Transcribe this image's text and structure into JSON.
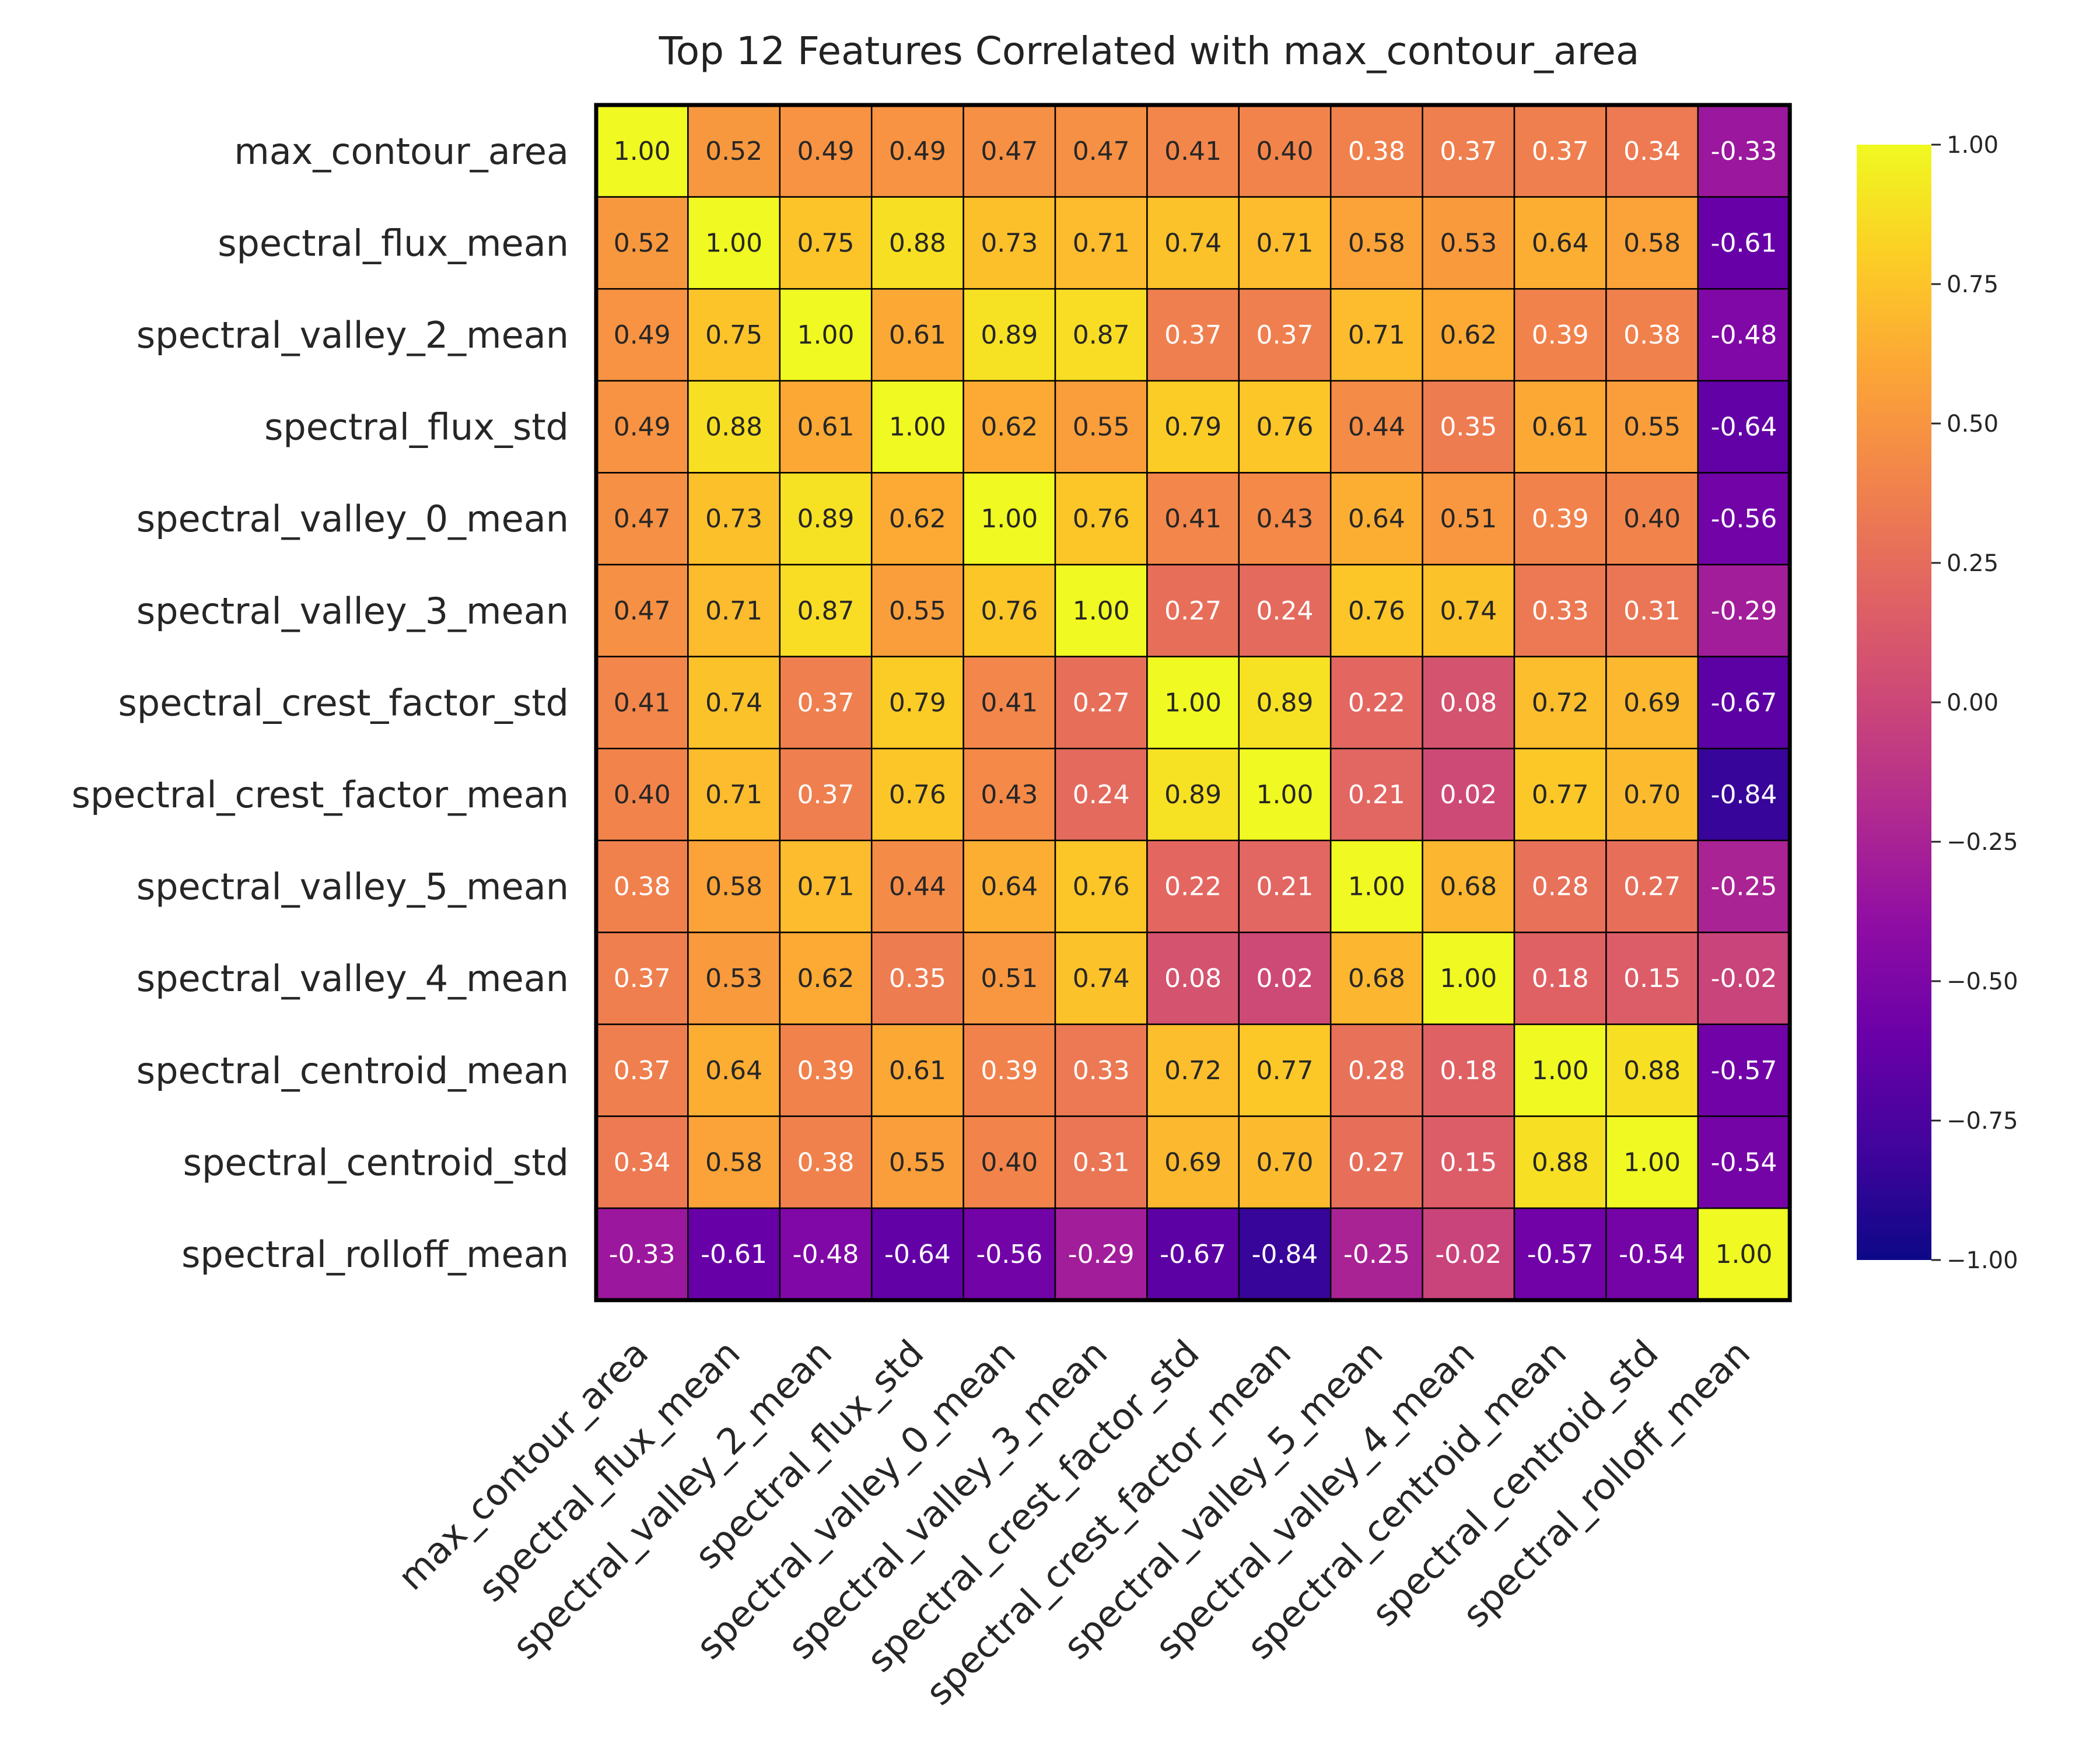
{
  "chart_data": {
    "type": "heatmap",
    "title": "Top 12 Features Correlated with max_contour_area",
    "labels": [
      "max_contour_area",
      "spectral_flux_mean",
      "spectral_valley_2_mean",
      "spectral_flux_std",
      "spectral_valley_0_mean",
      "spectral_valley_3_mean",
      "spectral_crest_factor_std",
      "spectral_crest_factor_mean",
      "spectral_valley_5_mean",
      "spectral_valley_4_mean",
      "spectral_centroid_mean",
      "spectral_centroid_std",
      "spectral_rolloff_mean"
    ],
    "matrix": [
      [
        1.0,
        0.52,
        0.49,
        0.49,
        0.47,
        0.47,
        0.41,
        0.4,
        0.38,
        0.37,
        0.37,
        0.34,
        -0.33
      ],
      [
        0.52,
        1.0,
        0.75,
        0.88,
        0.73,
        0.71,
        0.74,
        0.71,
        0.58,
        0.53,
        0.64,
        0.58,
        -0.61
      ],
      [
        0.49,
        0.75,
        1.0,
        0.61,
        0.89,
        0.87,
        0.37,
        0.37,
        0.71,
        0.62,
        0.39,
        0.38,
        -0.48
      ],
      [
        0.49,
        0.88,
        0.61,
        1.0,
        0.62,
        0.55,
        0.79,
        0.76,
        0.44,
        0.35,
        0.61,
        0.55,
        -0.64
      ],
      [
        0.47,
        0.73,
        0.89,
        0.62,
        1.0,
        0.76,
        0.41,
        0.43,
        0.64,
        0.51,
        0.39,
        0.4,
        -0.56
      ],
      [
        0.47,
        0.71,
        0.87,
        0.55,
        0.76,
        1.0,
        0.27,
        0.24,
        0.76,
        0.74,
        0.33,
        0.31,
        -0.29
      ],
      [
        0.41,
        0.74,
        0.37,
        0.79,
        0.41,
        0.27,
        1.0,
        0.89,
        0.22,
        0.08,
        0.72,
        0.69,
        -0.67
      ],
      [
        0.4,
        0.71,
        0.37,
        0.76,
        0.43,
        0.24,
        0.89,
        1.0,
        0.21,
        0.02,
        0.77,
        0.7,
        -0.84
      ],
      [
        0.38,
        0.58,
        0.71,
        0.44,
        0.64,
        0.76,
        0.22,
        0.21,
        1.0,
        0.68,
        0.28,
        0.27,
        -0.25
      ],
      [
        0.37,
        0.53,
        0.62,
        0.35,
        0.51,
        0.74,
        0.08,
        0.02,
        0.68,
        1.0,
        0.18,
        0.15,
        -0.02
      ],
      [
        0.37,
        0.64,
        0.39,
        0.61,
        0.39,
        0.33,
        0.72,
        0.77,
        0.28,
        0.18,
        1.0,
        0.88,
        -0.57
      ],
      [
        0.34,
        0.58,
        0.38,
        0.55,
        0.4,
        0.31,
        0.69,
        0.7,
        0.27,
        0.15,
        0.88,
        1.0,
        -0.54
      ],
      [
        -0.33,
        -0.61,
        -0.48,
        -0.64,
        -0.56,
        -0.29,
        -0.67,
        -0.84,
        -0.25,
        -0.02,
        -0.57,
        -0.54,
        1.0
      ]
    ],
    "vmin": -1.0,
    "vmax": 1.0,
    "colormap": "plasma",
    "colorbar_ticks": [
      "1.00",
      "0.75",
      "0.50",
      "0.25",
      "0.00",
      "−0.25",
      "−0.50",
      "−0.75",
      "−1.00"
    ],
    "colorbar_tick_values": [
      1.0,
      0.75,
      0.5,
      0.25,
      0.0,
      -0.25,
      -0.5,
      -0.75,
      -1.0
    ],
    "cell_label_format": "2 decimals",
    "grid": true
  }
}
